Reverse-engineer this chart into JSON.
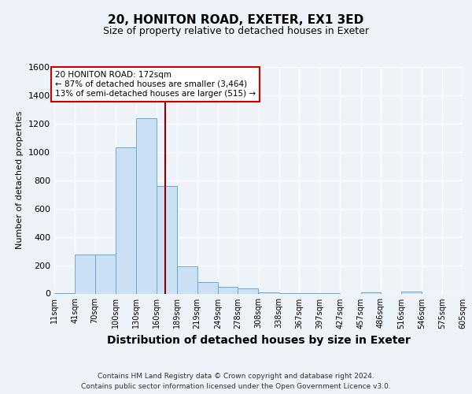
{
  "title1": "20, HONITON ROAD, EXETER, EX1 3ED",
  "title2": "Size of property relative to detached houses in Exeter",
  "xlabel": "Distribution of detached houses by size in Exeter",
  "ylabel": "Number of detached properties",
  "bin_labels": [
    "11sqm",
    "41sqm",
    "70sqm",
    "100sqm",
    "130sqm",
    "160sqm",
    "189sqm",
    "219sqm",
    "249sqm",
    "278sqm",
    "308sqm",
    "338sqm",
    "367sqm",
    "397sqm",
    "427sqm",
    "457sqm",
    "486sqm",
    "516sqm",
    "546sqm",
    "575sqm",
    "605sqm"
  ],
  "bin_edges": [
    11,
    41,
    70,
    100,
    130,
    160,
    189,
    219,
    249,
    278,
    308,
    338,
    367,
    397,
    427,
    457,
    486,
    516,
    546,
    575,
    605
  ],
  "bar_heights": [
    5,
    275,
    275,
    1030,
    1240,
    760,
    190,
    80,
    45,
    35,
    10,
    5,
    5,
    5,
    0,
    10,
    0,
    15,
    0,
    0
  ],
  "bar_color": "#cce0f5",
  "bar_edge_color": "#6aaad4",
  "property_size": 172,
  "vline_color": "#8b0000",
  "ann_line1": "20 HONITON ROAD: 172sqm",
  "ann_line2": "← 87% of detached houses are smaller (3,464)",
  "ann_line3": "13% of semi-detached houses are larger (515) →",
  "annotation_box_color": "white",
  "annotation_box_edge": "#cc0000",
  "ylim": [
    0,
    1600
  ],
  "yticks": [
    0,
    200,
    400,
    600,
    800,
    1000,
    1200,
    1400,
    1600
  ],
  "footnote1": "Contains HM Land Registry data © Crown copyright and database right 2024.",
  "footnote2": "Contains public sector information licensed under the Open Government Licence v3.0.",
  "background_color": "#eef2f9",
  "plot_bg_color": "#eef2f9",
  "grid_color": "#ffffff",
  "title1_fontsize": 11,
  "title2_fontsize": 9,
  "xlabel_fontsize": 10,
  "ylabel_fontsize": 8,
  "tick_fontsize": 8,
  "xtick_fontsize": 7
}
